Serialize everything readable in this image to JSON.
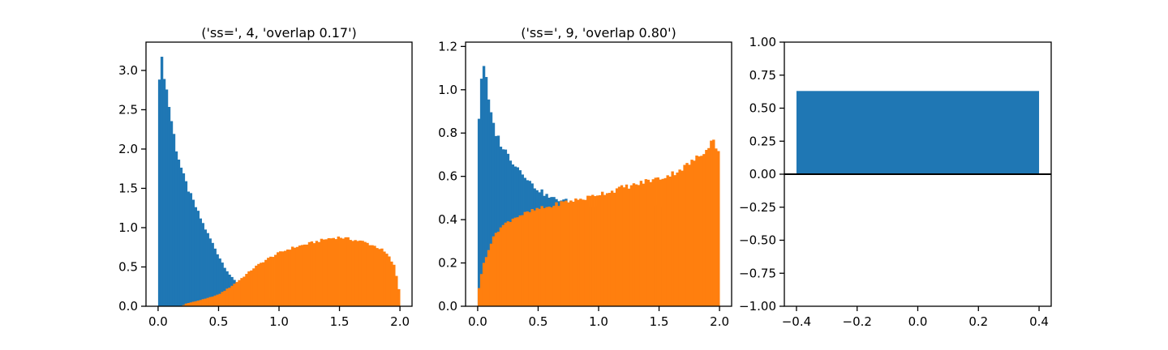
{
  "chart_data": [
    {
      "type": "histogram",
      "title": "('ss=', 4, 'overlap 0.17')",
      "xlim": [
        -0.1,
        2.1
      ],
      "ylim": [
        0,
        3.36
      ],
      "xticks": [
        0.0,
        0.5,
        1.0,
        1.5,
        2.0
      ],
      "xtick_labels": [
        "0.0",
        "0.5",
        "1.0",
        "1.5",
        "2.0"
      ],
      "yticks": [
        0.0,
        0.5,
        1.0,
        1.5,
        2.0,
        2.5,
        3.0
      ],
      "ytick_labels": [
        "0.0",
        "0.5",
        "1.0",
        "1.5",
        "2.0",
        "2.5",
        "3.0"
      ],
      "bin_range": [
        0,
        2
      ],
      "bins": 100,
      "series": [
        {
          "color": "#1f77b4",
          "density_profile": [
            [
              0.0,
              2.72
            ],
            [
              0.02,
              3.18
            ],
            [
              0.04,
              3.05
            ],
            [
              0.06,
              2.85
            ],
            [
              0.1,
              2.45
            ],
            [
              0.15,
              2.0
            ],
            [
              0.2,
              1.7
            ],
            [
              0.25,
              1.48
            ],
            [
              0.3,
              1.3
            ],
            [
              0.35,
              1.12
            ],
            [
              0.4,
              0.95
            ],
            [
              0.45,
              0.8
            ],
            [
              0.5,
              0.64
            ],
            [
              0.55,
              0.5
            ],
            [
              0.6,
              0.38
            ],
            [
              0.65,
              0.3
            ],
            [
              0.7,
              0.25
            ],
            [
              0.75,
              0.2
            ],
            [
              0.8,
              0.15
            ],
            [
              0.9,
              0.1
            ],
            [
              1.0,
              0.05
            ],
            [
              1.1,
              0.03
            ],
            [
              1.2,
              0.0
            ]
          ]
        },
        {
          "color": "#ff7f0e",
          "density_profile": [
            [
              0.0,
              0.0
            ],
            [
              0.2,
              0.0
            ],
            [
              0.22,
              0.03
            ],
            [
              0.3,
              0.06
            ],
            [
              0.4,
              0.1
            ],
            [
              0.5,
              0.15
            ],
            [
              0.6,
              0.25
            ],
            [
              0.7,
              0.37
            ],
            [
              0.8,
              0.5
            ],
            [
              0.9,
              0.6
            ],
            [
              1.0,
              0.68
            ],
            [
              1.1,
              0.74
            ],
            [
              1.2,
              0.78
            ],
            [
              1.3,
              0.82
            ],
            [
              1.4,
              0.86
            ],
            [
              1.5,
              0.88
            ],
            [
              1.6,
              0.85
            ],
            [
              1.7,
              0.82
            ],
            [
              1.8,
              0.76
            ],
            [
              1.85,
              0.72
            ],
            [
              1.9,
              0.65
            ],
            [
              1.95,
              0.52
            ],
            [
              1.98,
              0.32
            ],
            [
              2.0,
              0.12
            ]
          ]
        }
      ]
    },
    {
      "type": "histogram",
      "title": "('ss=', 9, 'overlap 0.80')",
      "xlim": [
        -0.1,
        2.1
      ],
      "ylim": [
        0,
        1.22
      ],
      "xticks": [
        0.0,
        0.5,
        1.0,
        1.5,
        2.0
      ],
      "xtick_labels": [
        "0.0",
        "0.5",
        "1.0",
        "1.5",
        "2.0"
      ],
      "yticks": [
        0.0,
        0.2,
        0.4,
        0.6,
        0.8,
        1.0,
        1.2
      ],
      "ytick_labels": [
        "0.0",
        "0.2",
        "0.4",
        "0.6",
        "0.8",
        "1.0",
        "1.2"
      ],
      "bin_range": [
        0,
        2
      ],
      "bins": 100,
      "series": [
        {
          "color": "#1f77b4",
          "density_profile": [
            [
              0.0,
              0.8
            ],
            [
              0.02,
              0.95
            ],
            [
              0.04,
              1.16
            ],
            [
              0.06,
              1.08
            ],
            [
              0.08,
              1.0
            ],
            [
              0.1,
              0.9
            ],
            [
              0.15,
              0.8
            ],
            [
              0.2,
              0.74
            ],
            [
              0.25,
              0.7
            ],
            [
              0.3,
              0.66
            ],
            [
              0.35,
              0.63
            ],
            [
              0.4,
              0.6
            ],
            [
              0.45,
              0.56
            ],
            [
              0.5,
              0.54
            ],
            [
              0.55,
              0.52
            ],
            [
              0.6,
              0.5
            ],
            [
              0.7,
              0.49
            ],
            [
              0.8,
              0.48
            ],
            [
              0.9,
              0.46
            ]
          ]
        },
        {
          "color": "#ff7f0e",
          "density_profile": [
            [
              0.0,
              0.05
            ],
            [
              0.02,
              0.12
            ],
            [
              0.05,
              0.2
            ],
            [
              0.1,
              0.28
            ],
            [
              0.15,
              0.34
            ],
            [
              0.2,
              0.37
            ],
            [
              0.3,
              0.41
            ],
            [
              0.4,
              0.43
            ],
            [
              0.5,
              0.45
            ],
            [
              0.6,
              0.46
            ],
            [
              0.7,
              0.48
            ],
            [
              0.8,
              0.49
            ],
            [
              0.9,
              0.5
            ],
            [
              1.0,
              0.52
            ],
            [
              1.1,
              0.53
            ],
            [
              1.2,
              0.55
            ],
            [
              1.3,
              0.56
            ],
            [
              1.4,
              0.58
            ],
            [
              1.5,
              0.59
            ],
            [
              1.6,
              0.61
            ],
            [
              1.7,
              0.64
            ],
            [
              1.8,
              0.68
            ],
            [
              1.85,
              0.7
            ],
            [
              1.9,
              0.74
            ],
            [
              1.95,
              0.77
            ],
            [
              2.0,
              0.7
            ]
          ]
        }
      ]
    },
    {
      "type": "bar",
      "title": "",
      "xlim": [
        -0.44,
        0.44
      ],
      "ylim": [
        -1.0,
        1.0
      ],
      "xticks": [
        -0.4,
        -0.2,
        0.0,
        0.2,
        0.4
      ],
      "xtick_labels": [
        "−0.4",
        "−0.2",
        "0.0",
        "0.2",
        "0.4"
      ],
      "yticks": [
        -1.0,
        -0.75,
        -0.5,
        -0.25,
        0.0,
        0.25,
        0.5,
        0.75,
        1.0
      ],
      "ytick_labels": [
        "−1.00",
        "−0.75",
        "−0.50",
        "−0.25",
        "0.00",
        "0.25",
        "0.50",
        "0.75",
        "1.00"
      ],
      "bars": [
        {
          "x": 0.0,
          "width": 0.8,
          "value": 0.63,
          "color": "#1f77b4"
        }
      ],
      "hline": {
        "y": 0.0,
        "color": "#000000"
      }
    }
  ]
}
